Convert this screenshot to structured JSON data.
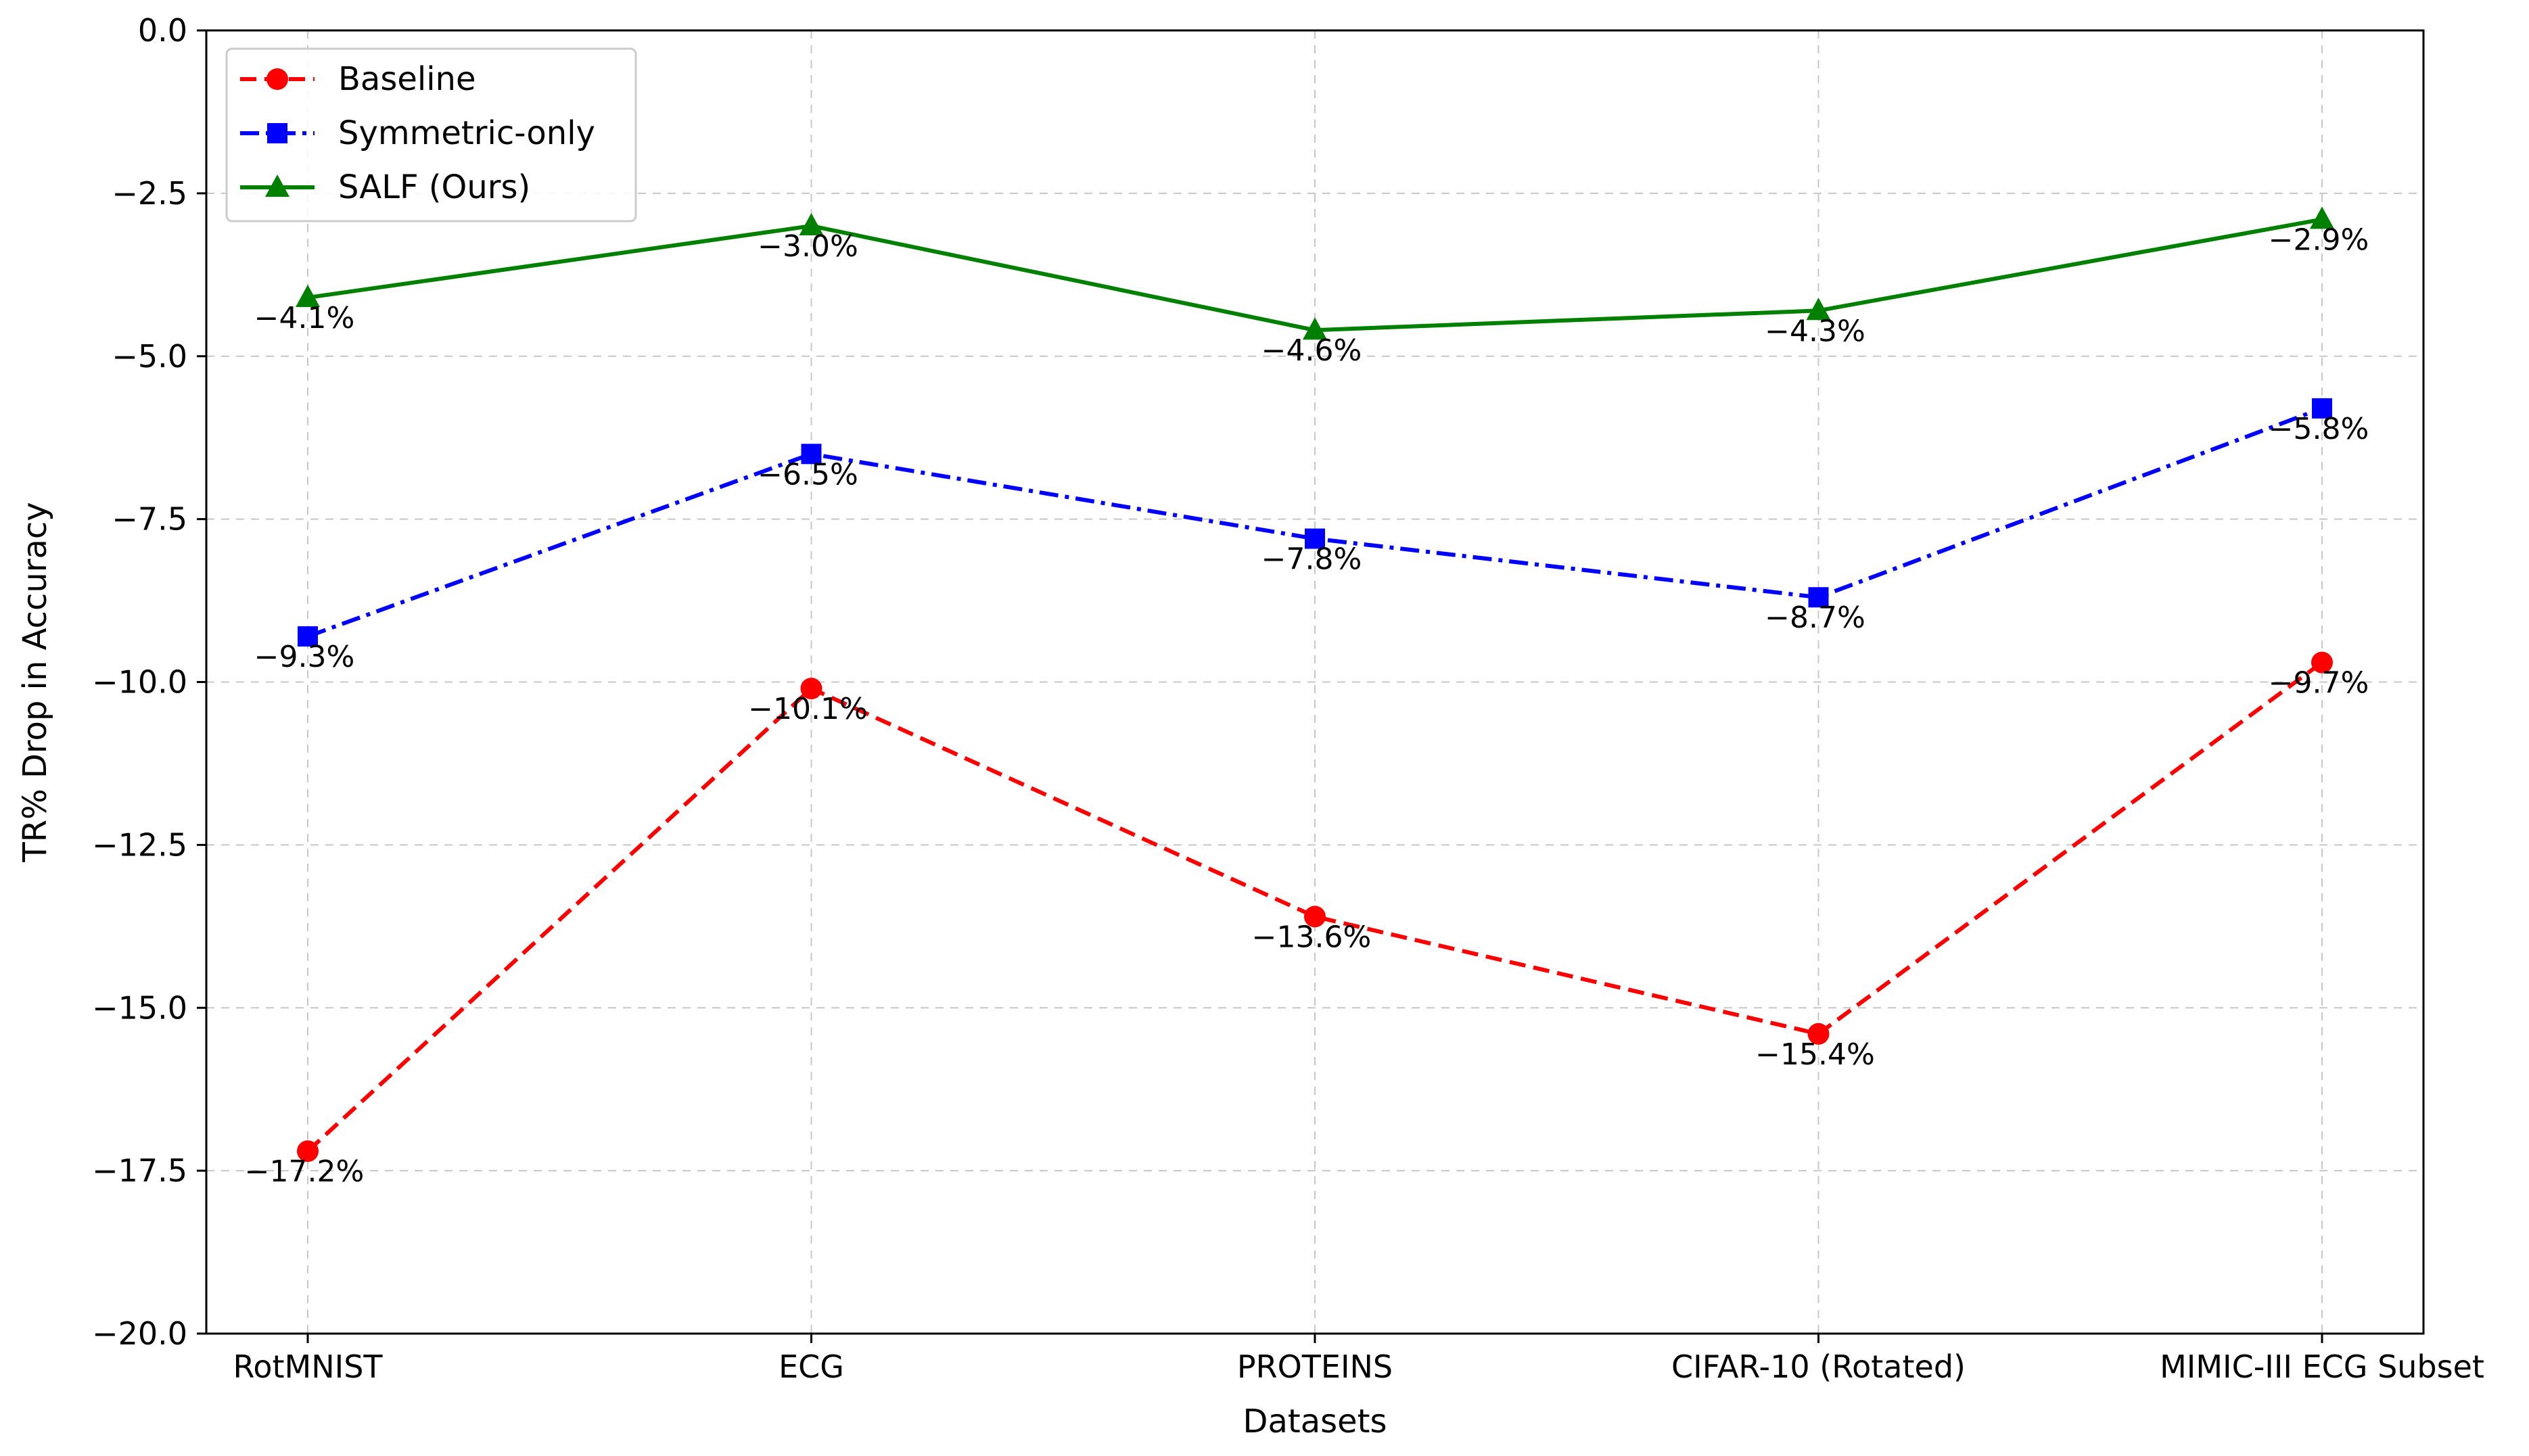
{
  "chart_data": {
    "type": "line",
    "title": "",
    "xlabel": "Datasets",
    "ylabel": "TR% Drop in Accuracy",
    "categories": [
      "RotMNIST",
      "ECG",
      "PROTEINS",
      "CIFAR-10 (Rotated)",
      "MIMIC-III ECG Subset"
    ],
    "ylim": [
      -20.0,
      0.0
    ],
    "yticks": [
      0.0,
      -2.5,
      -5.0,
      -7.5,
      -10.0,
      -12.5,
      -15.0,
      -17.5,
      -20.0
    ],
    "ytick_labels": [
      "0.0",
      "−2.5",
      "−5.0",
      "−7.5",
      "−10.0",
      "−12.5",
      "−15.0",
      "−17.5",
      "−20.0"
    ],
    "grid": true,
    "legend_position": "top-left",
    "series": [
      {
        "name": "Baseline",
        "color": "#ff0000",
        "line_style": "dashed",
        "marker": "circle",
        "values": [
          -17.2,
          -10.1,
          -13.6,
          -15.4,
          -9.7
        ],
        "labels": [
          "−17.2%",
          "−10.1%",
          "−13.6%",
          "−15.4%",
          "−9.7%"
        ]
      },
      {
        "name": "Symmetric-only",
        "color": "#0000ff",
        "line_style": "dashdot",
        "marker": "square",
        "values": [
          -9.3,
          -6.5,
          -7.8,
          -8.7,
          -5.8
        ],
        "labels": [
          "−9.3%",
          "−6.5%",
          "−7.8%",
          "−8.7%",
          "−5.8%"
        ]
      },
      {
        "name": "SALF (Ours)",
        "color": "#008000",
        "line_style": "solid",
        "marker": "triangle",
        "values": [
          -4.1,
          -3.0,
          -4.6,
          -4.3,
          -2.9
        ],
        "labels": [
          "−4.1%",
          "−3.0%",
          "−4.6%",
          "−4.3%",
          "−2.9%"
        ]
      }
    ]
  }
}
